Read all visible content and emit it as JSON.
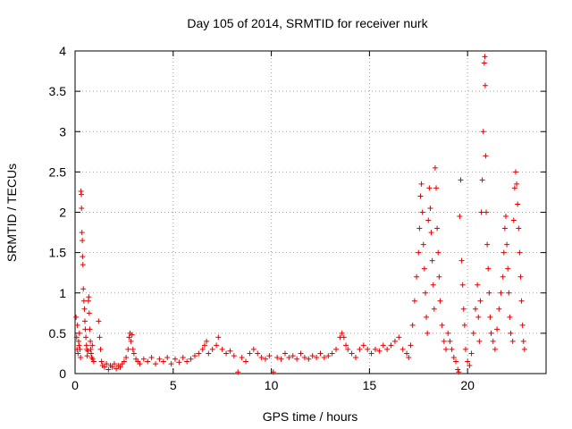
{
  "chart_data": {
    "type": "scatter",
    "title": "Day 105 of 2014, SRMTID for receiver nurk",
    "xlabel": "GPS time / hours",
    "ylabel": "SRMTID / TECUs",
    "xlim": [
      0,
      24
    ],
    "ylim": [
      0,
      4
    ],
    "xticks": [
      0,
      5,
      10,
      15,
      20
    ],
    "xtick_labels": [
      "0",
      "5",
      "10",
      "15",
      "20"
    ],
    "yticks": [
      0,
      0.5,
      1,
      1.5,
      2,
      2.5,
      3,
      3.5,
      4
    ],
    "ytick_labels": [
      "0",
      "0.5",
      "1",
      "1.5",
      "2",
      "2.5",
      "3",
      "3.5",
      "4"
    ],
    "grid": true,
    "marker": "+",
    "color": "#e00000",
    "series": [
      {
        "name": "SRMTID",
        "points": [
          [
            0.05,
            0.7
          ],
          [
            0.08,
            0.45
          ],
          [
            0.1,
            0.3
          ],
          [
            0.12,
            0.6
          ],
          [
            0.15,
            0.25
          ],
          [
            0.18,
            0.4
          ],
          [
            0.2,
            0.35
          ],
          [
            0.22,
            0.5
          ],
          [
            0.25,
            0.3
          ],
          [
            0.28,
            0.2
          ],
          [
            0.3,
            2.26
          ],
          [
            0.32,
            2.22
          ],
          [
            0.33,
            2.05
          ],
          [
            0.35,
            1.75
          ],
          [
            0.37,
            1.65
          ],
          [
            0.38,
            1.45
          ],
          [
            0.4,
            1.35
          ],
          [
            0.42,
            1.05
          ],
          [
            0.45,
            0.9
          ],
          [
            0.48,
            0.8
          ],
          [
            0.5,
            0.65
          ],
          [
            0.52,
            0.55
          ],
          [
            0.55,
            0.45
          ],
          [
            0.58,
            0.35
          ],
          [
            0.6,
            0.3
          ],
          [
            0.62,
            0.22
          ],
          [
            0.65,
            0.28
          ],
          [
            0.68,
            0.9
          ],
          [
            0.7,
            0.95
          ],
          [
            0.72,
            0.75
          ],
          [
            0.75,
            0.55
          ],
          [
            0.78,
            0.4
          ],
          [
            0.8,
            0.3
          ],
          [
            0.82,
            0.25
          ],
          [
            0.85,
            0.2
          ],
          [
            0.88,
            0.35
          ],
          [
            0.9,
            0.18
          ],
          [
            0.95,
            0.15
          ],
          [
            1.2,
            0.65
          ],
          [
            1.25,
            0.45
          ],
          [
            1.3,
            0.3
          ],
          [
            1.35,
            0.15
          ],
          [
            1.4,
            0.1
          ],
          [
            1.5,
            0.08
          ],
          [
            1.6,
            0.12
          ],
          [
            1.7,
            0.05
          ],
          [
            1.8,
            0.1
          ],
          [
            1.9,
            0.08
          ],
          [
            2.0,
            0.12
          ],
          [
            2.1,
            0.06
          ],
          [
            2.2,
            0.1
          ],
          [
            2.3,
            0.08
          ],
          [
            2.4,
            0.12
          ],
          [
            2.5,
            0.15
          ],
          [
            2.6,
            0.2
          ],
          [
            2.7,
            0.3
          ],
          [
            2.75,
            0.45
          ],
          [
            2.8,
            0.5
          ],
          [
            2.85,
            0.4
          ],
          [
            2.9,
            0.48
          ],
          [
            2.95,
            0.3
          ],
          [
            3.0,
            0.25
          ],
          [
            3.1,
            0.18
          ],
          [
            3.2,
            0.15
          ],
          [
            3.3,
            0.12
          ],
          [
            3.5,
            0.18
          ],
          [
            3.7,
            0.15
          ],
          [
            3.9,
            0.2
          ],
          [
            4.1,
            0.12
          ],
          [
            4.3,
            0.18
          ],
          [
            4.5,
            0.15
          ],
          [
            4.7,
            0.2
          ],
          [
            4.9,
            0.12
          ],
          [
            5.1,
            0.18
          ],
          [
            5.3,
            0.14
          ],
          [
            5.5,
            0.2
          ],
          [
            5.7,
            0.15
          ],
          [
            5.9,
            0.18
          ],
          [
            6.1,
            0.22
          ],
          [
            6.3,
            0.25
          ],
          [
            6.5,
            0.3
          ],
          [
            6.6,
            0.35
          ],
          [
            6.7,
            0.4
          ],
          [
            6.8,
            0.25
          ],
          [
            7.0,
            0.3
          ],
          [
            7.2,
            0.35
          ],
          [
            7.3,
            0.45
          ],
          [
            7.5,
            0.3
          ],
          [
            7.7,
            0.25
          ],
          [
            7.9,
            0.28
          ],
          [
            8.1,
            0.22
          ],
          [
            8.3,
            0.02
          ],
          [
            8.5,
            0.2
          ],
          [
            8.7,
            0.15
          ],
          [
            8.9,
            0.25
          ],
          [
            9.1,
            0.3
          ],
          [
            9.3,
            0.25
          ],
          [
            9.5,
            0.2
          ],
          [
            9.7,
            0.18
          ],
          [
            9.9,
            0.22
          ],
          [
            10.1,
            0.02
          ],
          [
            10.3,
            0.2
          ],
          [
            10.5,
            0.18
          ],
          [
            10.7,
            0.25
          ],
          [
            10.9,
            0.2
          ],
          [
            11.1,
            0.22
          ],
          [
            11.3,
            0.18
          ],
          [
            11.5,
            0.25
          ],
          [
            11.7,
            0.2
          ],
          [
            11.9,
            0.18
          ],
          [
            12.1,
            0.22
          ],
          [
            12.3,
            0.2
          ],
          [
            12.5,
            0.25
          ],
          [
            12.7,
            0.2
          ],
          [
            12.9,
            0.22
          ],
          [
            13.1,
            0.25
          ],
          [
            13.3,
            0.3
          ],
          [
            13.5,
            0.45
          ],
          [
            13.6,
            0.5
          ],
          [
            13.7,
            0.45
          ],
          [
            13.8,
            0.35
          ],
          [
            13.9,
            0.3
          ],
          [
            14.1,
            0.25
          ],
          [
            14.3,
            0.2
          ],
          [
            14.5,
            0.3
          ],
          [
            14.7,
            0.35
          ],
          [
            14.9,
            0.3
          ],
          [
            15.1,
            0.25
          ],
          [
            15.3,
            0.3
          ],
          [
            15.5,
            0.28
          ],
          [
            15.7,
            0.35
          ],
          [
            15.9,
            0.3
          ],
          [
            16.1,
            0.35
          ],
          [
            16.3,
            0.4
          ],
          [
            16.5,
            0.45
          ],
          [
            16.7,
            0.3
          ],
          [
            16.9,
            0.25
          ],
          [
            17.0,
            0.2
          ],
          [
            17.1,
            0.35
          ],
          [
            17.2,
            0.6
          ],
          [
            17.3,
            0.9
          ],
          [
            17.4,
            1.2
          ],
          [
            17.5,
            1.5
          ],
          [
            17.55,
            1.8
          ],
          [
            17.6,
            2.2
          ],
          [
            17.65,
            2.35
          ],
          [
            17.7,
            2.0
          ],
          [
            17.75,
            1.6
          ],
          [
            17.8,
            1.3
          ],
          [
            17.85,
            1.0
          ],
          [
            17.9,
            0.7
          ],
          [
            17.95,
            0.5
          ],
          [
            18.0,
            1.9
          ],
          [
            18.05,
            2.3
          ],
          [
            18.1,
            2.05
          ],
          [
            18.15,
            1.75
          ],
          [
            18.2,
            1.4
          ],
          [
            18.25,
            1.1
          ],
          [
            18.3,
            0.8
          ],
          [
            18.35,
            2.55
          ],
          [
            18.4,
            2.3
          ],
          [
            18.45,
            1.8
          ],
          [
            18.5,
            1.5
          ],
          [
            18.55,
            1.2
          ],
          [
            18.6,
            0.9
          ],
          [
            18.7,
            0.6
          ],
          [
            18.8,
            0.4
          ],
          [
            18.9,
            0.3
          ],
          [
            19.0,
            0.5
          ],
          [
            19.1,
            0.4
          ],
          [
            19.2,
            0.3
          ],
          [
            19.3,
            0.2
          ],
          [
            19.4,
            0.15
          ],
          [
            19.5,
            0.05
          ],
          [
            19.55,
            0.02
          ],
          [
            19.6,
            1.95
          ],
          [
            19.65,
            2.4
          ],
          [
            19.7,
            1.4
          ],
          [
            19.75,
            1.1
          ],
          [
            19.8,
            0.8
          ],
          [
            19.85,
            0.6
          ],
          [
            19.9,
            0.3
          ],
          [
            20.0,
            0.15
          ],
          [
            20.1,
            0.1
          ],
          [
            20.2,
            0.25
          ],
          [
            20.3,
            0.5
          ],
          [
            20.4,
            0.8
          ],
          [
            20.5,
            1.1
          ],
          [
            20.55,
            0.7
          ],
          [
            20.6,
            0.4
          ],
          [
            20.65,
            0.9
          ],
          [
            20.7,
            2.0
          ],
          [
            20.75,
            2.4
          ],
          [
            20.8,
            3.0
          ],
          [
            20.85,
            3.85
          ],
          [
            20.88,
            3.93
          ],
          [
            20.9,
            3.57
          ],
          [
            20.92,
            2.7
          ],
          [
            20.95,
            2.0
          ],
          [
            21.0,
            1.6
          ],
          [
            21.05,
            1.3
          ],
          [
            21.1,
            1.0
          ],
          [
            21.15,
            0.7
          ],
          [
            21.2,
            0.5
          ],
          [
            21.3,
            0.4
          ],
          [
            21.4,
            0.3
          ],
          [
            21.5,
            0.55
          ],
          [
            21.6,
            0.8
          ],
          [
            21.7,
            1.0
          ],
          [
            21.8,
            1.2
          ],
          [
            21.85,
            1.5
          ],
          [
            21.9,
            1.8
          ],
          [
            21.95,
            1.95
          ],
          [
            22.0,
            1.6
          ],
          [
            22.05,
            1.3
          ],
          [
            22.1,
            1.0
          ],
          [
            22.15,
            0.7
          ],
          [
            22.2,
            0.5
          ],
          [
            22.3,
            0.4
          ],
          [
            22.35,
            1.9
          ],
          [
            22.4,
            2.3
          ],
          [
            22.45,
            2.5
          ],
          [
            22.5,
            2.35
          ],
          [
            22.55,
            2.1
          ],
          [
            22.6,
            1.8
          ],
          [
            22.65,
            1.5
          ],
          [
            22.7,
            1.2
          ],
          [
            22.75,
            0.9
          ],
          [
            22.8,
            0.6
          ],
          [
            22.85,
            0.4
          ],
          [
            22.9,
            0.3
          ]
        ]
      }
    ]
  }
}
